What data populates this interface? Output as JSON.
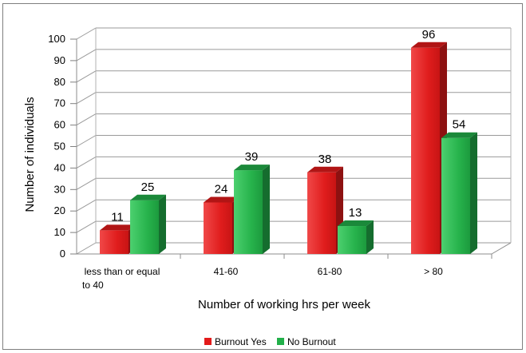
{
  "chart_data": {
    "type": "bar",
    "variant": "3d-clustered",
    "categories": [
      "less than or equal to 40",
      "41-60",
      "61-80",
      "> 80"
    ],
    "category_lines": [
      [
        "less than or equal",
        "to 40"
      ],
      [
        "41-60"
      ],
      [
        "61-80"
      ],
      [
        "> 80"
      ]
    ],
    "series": [
      {
        "name": "Burnout Yes",
        "values": [
          11,
          24,
          38,
          96
        ],
        "color": "#e31b1b"
      },
      {
        "name": "No Burnout",
        "values": [
          25,
          39,
          13,
          54
        ],
        "color": "#22b04a"
      }
    ],
    "xlabel": "Number of working hrs per week",
    "ylabel": "Number of individuals",
    "ylim": [
      0,
      100
    ],
    "yticks": [
      0,
      10,
      20,
      30,
      40,
      50,
      60,
      70,
      80,
      90,
      100
    ],
    "grid": true,
    "legend_position": "bottom"
  }
}
